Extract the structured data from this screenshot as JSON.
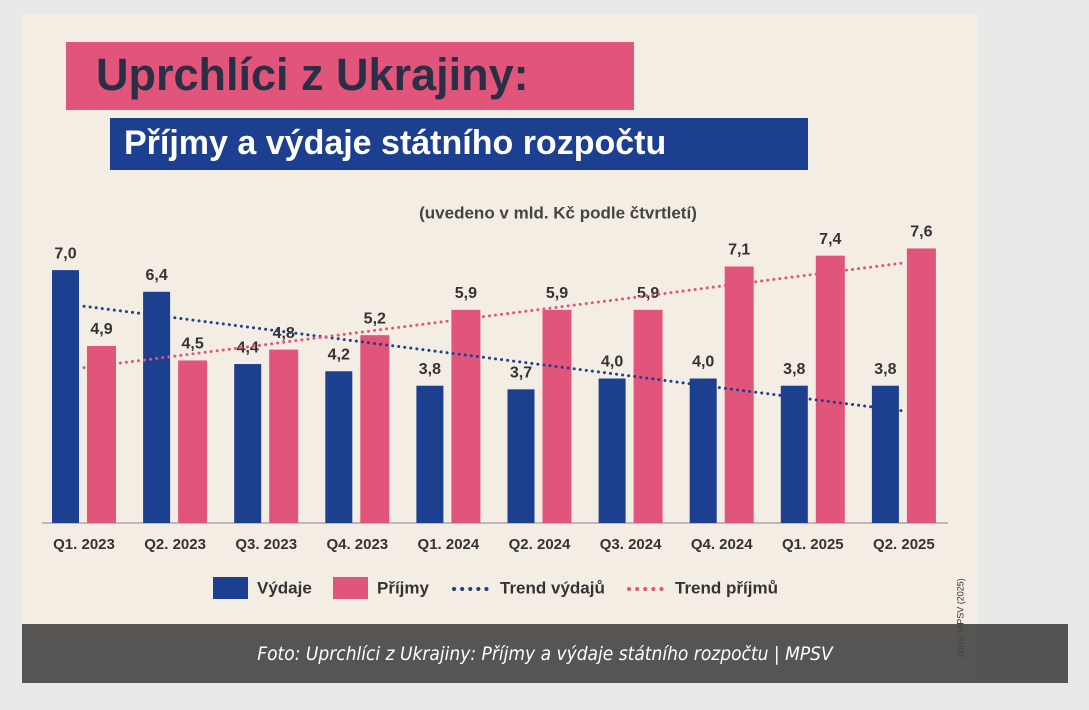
{
  "chart_data": {
    "type": "bar",
    "title": "Uprchlíci z Ukrajiny:",
    "subtitle": "Příjmy a výdaje státního rozpočtu",
    "note": "(uvedeno v mld. Kč podle čtvrtletí)",
    "source": "Zdroj: MPSV (2025)",
    "categories": [
      "Q1. 2023",
      "Q2. 2023",
      "Q3. 2023",
      "Q4. 2023",
      "Q1. 2024",
      "Q2. 2024",
      "Q3. 2024",
      "Q4. 2024",
      "Q1. 2025",
      "Q2. 2025"
    ],
    "ylim": [
      0,
      8
    ],
    "series": [
      {
        "name": "Výdaje",
        "type": "bar",
        "color": "#1c3f8f",
        "values": [
          7.0,
          6.4,
          4.4,
          4.2,
          3.8,
          3.7,
          4.0,
          4.0,
          3.8,
          3.8
        ],
        "value_labels": [
          "7,0",
          "6,4",
          "4,4",
          "4,2",
          "3,8",
          "3,7",
          "4,0",
          "4,0",
          "3,8",
          "3,8"
        ]
      },
      {
        "name": "Příjmy",
        "type": "bar",
        "color": "#e2557a",
        "values": [
          4.9,
          4.5,
          4.8,
          5.2,
          5.9,
          5.9,
          5.9,
          7.1,
          7.4,
          7.6
        ],
        "value_labels": [
          "4,9",
          "4,5",
          "4,8",
          "5,2",
          "5,9",
          "5,9",
          "5,9",
          "7,1",
          "7,4",
          "7,6"
        ]
      },
      {
        "name": "Trend výdajů",
        "type": "line",
        "line_style": "dotted",
        "color": "#1c3f8f",
        "values": [
          6.0,
          5.68,
          5.36,
          5.03,
          4.71,
          4.39,
          4.07,
          3.74,
          3.42,
          3.1
        ]
      },
      {
        "name": "Trend příjmů",
        "type": "line",
        "line_style": "dotted",
        "color": "#e2557a",
        "values": [
          4.3,
          4.62,
          4.94,
          5.27,
          5.59,
          5.91,
          6.23,
          6.56,
          6.88,
          7.2
        ]
      }
    ]
  },
  "caption": "Foto: Uprchlíci z Ukrajiny: Příjmy a výdaje státního rozpočtu | MPSV"
}
